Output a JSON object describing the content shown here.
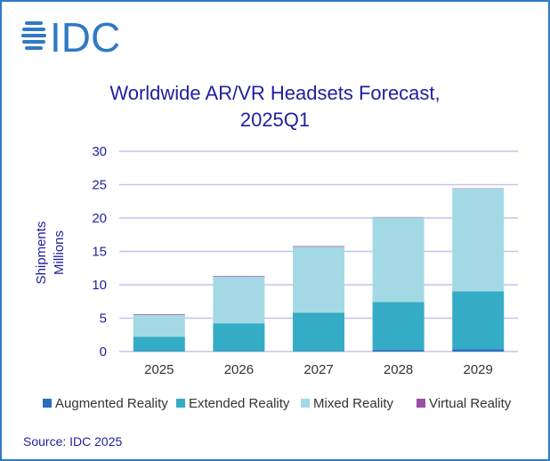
{
  "logo_text": "IDC",
  "chart_data": {
    "type": "bar",
    "stacked": true,
    "title": "Worldwide AR/VR Headsets Forecast, 2025Q1",
    "title_lines": [
      "Worldwide AR/VR Headsets Forecast,",
      "2025Q1"
    ],
    "ylabel_lines": [
      "Shipments",
      "Millions"
    ],
    "xlabel": "",
    "categories": [
      "2025",
      "2026",
      "2027",
      "2028",
      "2029"
    ],
    "ylim": [
      0,
      30
    ],
    "yticks": [
      0,
      5,
      10,
      15,
      20,
      25,
      30
    ],
    "grid": true,
    "legend_position": "bottom",
    "series": [
      {
        "name": "Augmented Reality",
        "color": "#2a6fbf",
        "values": [
          0.05,
          0.05,
          0.05,
          0.25,
          0.35
        ]
      },
      {
        "name": "Extended Reality",
        "color": "#35acc6",
        "values": [
          2.15,
          4.15,
          5.75,
          7.15,
          8.65
        ]
      },
      {
        "name": "Mixed Reality",
        "color": "#a3d9e4",
        "values": [
          3.3,
          7.0,
          9.9,
          12.7,
          15.4
        ]
      },
      {
        "name": "Virtual Reality",
        "color": "#9b4fa6",
        "values": [
          0.1,
          0.1,
          0.1,
          0.05,
          0.05
        ]
      }
    ]
  },
  "source": "Source: IDC 2025",
  "colors": {
    "text": "#1f1f9e",
    "grid": "#c3c3ee",
    "frame": "#2f7ac4",
    "logo": "#2f7ac4"
  }
}
